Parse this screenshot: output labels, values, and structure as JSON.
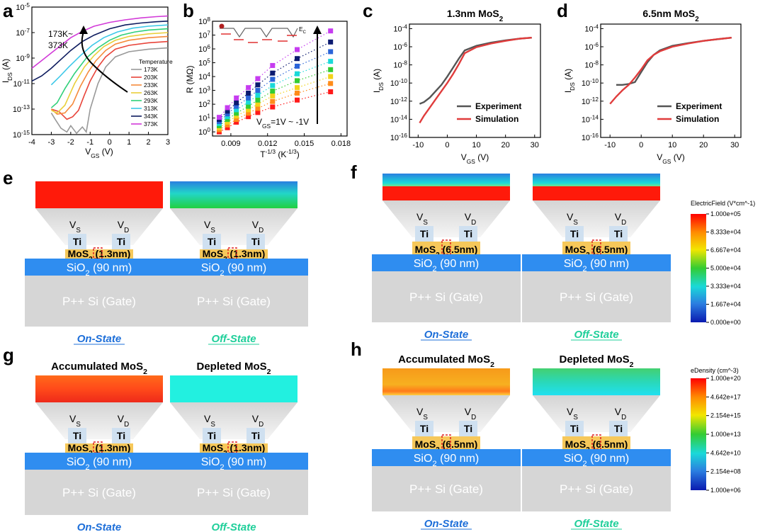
{
  "panels": {
    "a": "a",
    "b": "b",
    "c": "c",
    "d": "d",
    "e": "e",
    "f": "f",
    "g": "g",
    "h": "h"
  },
  "chart_data": [
    {
      "panel": "a",
      "type": "line",
      "xlabel": "V_GS (V)",
      "ylabel": "I_DS (A)",
      "xlim": [
        -4,
        3
      ],
      "ylim_log10": [
        -15,
        -5
      ],
      "xticks": [
        "-4",
        "-3",
        "-2",
        "-1",
        "0",
        "1",
        "2",
        "3"
      ],
      "yticks": [
        "10-15",
        "10-13",
        "10-11",
        "10-9",
        "10-7",
        "10-5"
      ],
      "legend_title": "Temperature",
      "annotation": "173K~ 373K",
      "series": [
        {
          "name": "173K",
          "color": "#999999",
          "x": [
            -3,
            -2.8,
            -2.5,
            -2.2,
            -2,
            -1.7,
            -1.4,
            -1.2,
            -1,
            -0.6,
            -0.2,
            0.3,
            1,
            2,
            3
          ],
          "log10y": [
            -13.3,
            -13.8,
            -14.5,
            -14.8,
            -14.3,
            -14.9,
            -14.4,
            -14.8,
            -13,
            -11,
            -9.7,
            -8.9,
            -8.5,
            -8.3,
            -8.2
          ]
        },
        {
          "name": "203K",
          "color": "#e8443a",
          "x": [
            -3,
            -2.6,
            -2.2,
            -1.9,
            -1.6,
            -1.3,
            -1,
            -0.6,
            -0.2,
            0.3,
            1,
            2,
            3
          ],
          "log10y": [
            -13,
            -13.2,
            -13.8,
            -13.6,
            -13.1,
            -11.9,
            -10.8,
            -9.7,
            -8.9,
            -8.3,
            -8,
            -7.8,
            -7.7
          ]
        },
        {
          "name": "233K",
          "color": "#f58a3b",
          "x": [
            -3,
            -2.7,
            -2.3,
            -1.9,
            -1.5,
            -1.1,
            -0.7,
            -0.2,
            0.3,
            1,
            2,
            3
          ],
          "log10y": [
            -13,
            -13.4,
            -13.3,
            -12.6,
            -11.2,
            -10.1,
            -9.2,
            -8.4,
            -7.9,
            -7.6,
            -7.4,
            -7.3
          ]
        },
        {
          "name": "263K",
          "color": "#e9cf3b",
          "x": [
            -3,
            -2.7,
            -2.3,
            -1.8,
            -1.3,
            -0.8,
            -0.3,
            0.3,
            1,
            2,
            3
          ],
          "log10y": [
            -13.1,
            -13.3,
            -12.7,
            -11,
            -9.7,
            -8.8,
            -8.1,
            -7.6,
            -7.3,
            -7.1,
            -7.0
          ]
        },
        {
          "name": "293K",
          "color": "#2fd07a",
          "x": [
            -3,
            -2.7,
            -2.3,
            -1.8,
            -1.2,
            -0.6,
            0,
            0.6,
            1.3,
            2,
            3
          ],
          "log10y": [
            -12.9,
            -12.5,
            -11.4,
            -10.2,
            -9.0,
            -8.2,
            -7.6,
            -7.2,
            -6.95,
            -6.8,
            -6.7
          ]
        },
        {
          "name": "313K",
          "color": "#3cc8e8",
          "x": [
            -3,
            -2.6,
            -2.1,
            -1.5,
            -0.9,
            -0.3,
            0.4,
            1.2,
            2,
            3
          ],
          "log10y": [
            -11.1,
            -10.5,
            -9.7,
            -8.8,
            -8.0,
            -7.4,
            -6.95,
            -6.65,
            -6.5,
            -6.4
          ]
        },
        {
          "name": "343K",
          "color": "#0d1b5e",
          "x": [
            -4,
            -3.5,
            -3,
            -2.5,
            -2,
            -1.4,
            -0.8,
            0,
            0.8,
            1.6,
            2.4,
            3
          ],
          "log10y": [
            -10.8,
            -10.4,
            -9.8,
            -9.1,
            -8.4,
            -7.7,
            -7.2,
            -6.7,
            -6.4,
            -6.25,
            -6.15,
            -6.1
          ]
        },
        {
          "name": "373K",
          "color": "#d23ad8",
          "x": [
            -4,
            -3.5,
            -3,
            -2.5,
            -2,
            -1.4,
            -0.8,
            0,
            0.8,
            1.6,
            2.4,
            3
          ],
          "log10y": [
            -9.8,
            -9.2,
            -8.6,
            -8.0,
            -7.4,
            -6.9,
            -6.5,
            -6.2,
            -6.0,
            -5.85,
            -5.75,
            -5.7
          ]
        }
      ]
    },
    {
      "panel": "b",
      "type": "scatter",
      "xlabel": "T^-1/3 (K^-1/3)",
      "ylabel": "R (MΩ)",
      "xlim": [
        0.0075,
        0.0185
      ],
      "ylim_log10": [
        -0.3,
        8
      ],
      "xticks": [
        "0.009",
        "0.012",
        "0.015",
        "0.018"
      ],
      "yticks": [
        "10^0",
        "10^1",
        "10^2",
        "10^3",
        "10^4",
        "10^5",
        "10^6",
        "10^7",
        "10^8"
      ],
      "annotation": "V_GS=1V ~ -1V",
      "inset_label": "E_C",
      "x": [
        0.00805,
        0.00872,
        0.00945,
        0.01043,
        0.0112,
        0.01241,
        0.01442,
        0.01715
      ],
      "series": [
        {
          "color": "#ff1a1a",
          "log10y": [
            0.0,
            0.3,
            0.7,
            1.1,
            1.4,
            1.8,
            2.3,
            2.9
          ]
        },
        {
          "color": "#ff8c1a",
          "log10y": [
            0.15,
            0.5,
            0.9,
            1.35,
            1.7,
            2.2,
            2.8,
            3.5
          ]
        },
        {
          "color": "#f2d21a",
          "log10y": [
            0.3,
            0.7,
            1.15,
            1.6,
            2.0,
            2.6,
            3.2,
            4.0
          ]
        },
        {
          "color": "#33cc33",
          "log10y": [
            0.45,
            0.9,
            1.35,
            1.85,
            2.3,
            2.95,
            3.7,
            4.5
          ]
        },
        {
          "color": "#1ad9d9",
          "log10y": [
            0.6,
            1.1,
            1.6,
            2.15,
            2.65,
            3.35,
            4.2,
            5.1
          ]
        },
        {
          "color": "#2b64d8",
          "log10y": [
            0.75,
            1.3,
            1.85,
            2.45,
            3.0,
            3.8,
            4.75,
            5.8
          ]
        },
        {
          "color": "#0b1a70",
          "log10y": [
            0.9,
            1.5,
            2.1,
            2.8,
            3.4,
            4.25,
            5.3,
            6.5
          ]
        },
        {
          "color": "#c63cf0",
          "log10y": [
            1.05,
            1.75,
            2.45,
            3.2,
            3.85,
            4.8,
            5.95,
            7.3
          ]
        }
      ]
    },
    {
      "panel": "c",
      "type": "line",
      "title": "1.3nm MoS2",
      "xlabel": "V_GS (V)",
      "ylabel": "I_DS (A)",
      "xlim": [
        -13,
        32
      ],
      "ylim_log10": [
        -16,
        -3.5
      ],
      "xticks": [
        "-10",
        "0",
        "10",
        "20",
        "30"
      ],
      "yticks": [
        "10-16",
        "10-14",
        "10-12",
        "10-10",
        "10-8",
        "10-6",
        "10-4"
      ],
      "series": [
        {
          "name": "Experiment",
          "color": "#555555",
          "x": [
            -9.5,
            -8,
            -6,
            -4,
            -2,
            0,
            2,
            4,
            6,
            10,
            15,
            20,
            25,
            29
          ],
          "log10y": [
            -12.3,
            -12.1,
            -11.6,
            -10.9,
            -10.2,
            -9.3,
            -8.3,
            -7.3,
            -6.4,
            -5.9,
            -5.55,
            -5.3,
            -5.1,
            -5.0
          ]
        },
        {
          "name": "Simulation",
          "color": "#e03c3c",
          "x": [
            -9.5,
            -8,
            -6,
            -4,
            -2,
            0,
            2,
            4,
            6,
            10,
            15,
            20,
            25,
            29
          ],
          "log10y": [
            -14.4,
            -13.6,
            -12.7,
            -11.8,
            -10.9,
            -10.0,
            -9.0,
            -7.9,
            -6.7,
            -6.05,
            -5.65,
            -5.35,
            -5.1,
            -5.0
          ]
        }
      ]
    },
    {
      "panel": "d",
      "type": "line",
      "title": "6.5nm MoS2",
      "xlabel": "V_GS (V)",
      "ylabel": "I_DS (A)",
      "xlim": [
        -13,
        32
      ],
      "ylim_log10": [
        -16,
        -3.5
      ],
      "xticks": [
        "-10",
        "0",
        "10",
        "20",
        "30"
      ],
      "yticks": [
        "10-16",
        "10-14",
        "10-12",
        "10-10",
        "10-8",
        "10-6",
        "10-4"
      ],
      "series": [
        {
          "name": "Experiment",
          "color": "#555555",
          "x": [
            -8,
            -6,
            -4,
            -2,
            0,
            2,
            4,
            6,
            10,
            15,
            20,
            25,
            29
          ],
          "log10y": [
            -10.2,
            -10.2,
            -10.1,
            -9.9,
            -8.8,
            -7.7,
            -6.9,
            -6.4,
            -5.9,
            -5.6,
            -5.35,
            -5.15,
            -5.0
          ]
        },
        {
          "name": "Simulation",
          "color": "#e03c3c",
          "x": [
            -10,
            -8,
            -6,
            -4,
            -2,
            0,
            2,
            4,
            6,
            10,
            15,
            20,
            25,
            29
          ],
          "log10y": [
            -12.3,
            -11.5,
            -10.8,
            -10.2,
            -9.4,
            -8.5,
            -7.5,
            -6.9,
            -6.5,
            -6.0,
            -5.65,
            -5.35,
            -5.15,
            -5.0
          ]
        }
      ]
    }
  ],
  "devices": {
    "vs": "V",
    "vs_sub": "S",
    "vd": "V",
    "vd_sub": "D",
    "ti": "Ti",
    "mos2_1": "MoS",
    "mos2_1_sub": "2",
    "mos2_1_rest": " (1.3nm)",
    "mos2_2": "MoS",
    "mos2_2_sub": "2",
    "mos2_2_rest": " (6.5nm)",
    "sio2": "SiO",
    "sio2_sub": "2",
    "sio2_rest": " (90 nm)",
    "gate": "P++ Si (Gate)",
    "on_state": "On-State",
    "off_state": "Off-State",
    "accumulated": "Accumulated MoS",
    "depleted": "Depleted MoS",
    "sub2": "2",
    "on_color": "#1e6fd9",
    "off_color": "#1fcf9a"
  },
  "colorbar_f": {
    "title": "ElectricField (V*cm^-1)",
    "ticks": [
      "1.000e+05",
      "8.333e+04",
      "6.667e+04",
      "5.000e+04",
      "3.333e+04",
      "1.667e+04",
      "0.000e+00"
    ]
  },
  "colorbar_h": {
    "title": "eDensity (cm^-3)",
    "ticks": [
      "1.000e+20",
      "4.642e+17",
      "2.154e+15",
      "1.000e+13",
      "4.642e+10",
      "2.154e+08",
      "1.000e+06"
    ]
  }
}
